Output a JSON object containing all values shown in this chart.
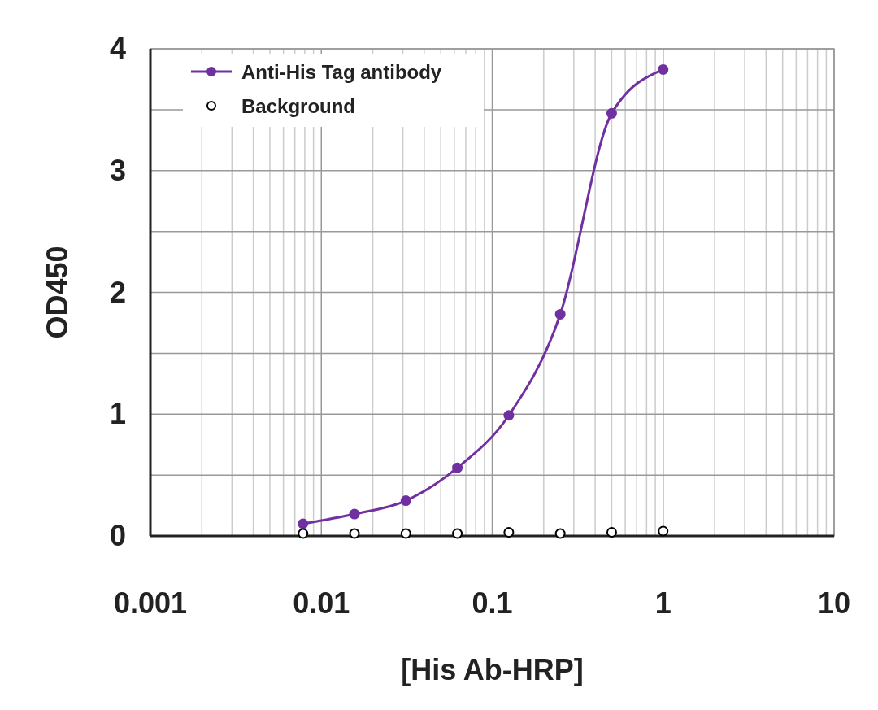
{
  "chart_data": {
    "type": "line",
    "xlabel": "[His Ab-HRP]",
    "ylabel": "OD450",
    "log": "x",
    "xlim": [
      0.001,
      10
    ],
    "ylim": [
      0,
      4
    ],
    "xticks": [
      0.001,
      {
        "value": 0.002,
        "label": null
      },
      {
        "value": 0.003,
        "label": null
      },
      {
        "value": 0.004,
        "label": null
      },
      {
        "value": 0.005,
        "label": null
      },
      {
        "value": 0.006,
        "label": null
      },
      {
        "value": 0.007,
        "label": null
      },
      {
        "value": 0.008,
        "label": null
      },
      {
        "value": 0.009,
        "label": null
      },
      0.01,
      {
        "value": 0.02,
        "label": null
      },
      {
        "value": 0.03,
        "label": null
      },
      {
        "value": 0.04,
        "label": null
      },
      {
        "value": 0.05,
        "label": null
      },
      {
        "value": 0.06,
        "label": null
      },
      {
        "value": 0.07,
        "label": null
      },
      {
        "value": 0.08,
        "label": null
      },
      {
        "value": 0.09,
        "label": null
      },
      0.1,
      {
        "value": 0.2,
        "label": null
      },
      {
        "value": 0.3,
        "label": null
      },
      {
        "value": 0.4,
        "label": null
      },
      {
        "value": 0.5,
        "label": null
      },
      {
        "value": 0.6,
        "label": null
      },
      {
        "value": 0.7,
        "label": null
      },
      {
        "value": 0.8,
        "label": null
      },
      {
        "value": 0.9,
        "label": null
      },
      1,
      {
        "value": 2,
        "label": null
      },
      {
        "value": 3,
        "label": null
      },
      {
        "value": 4,
        "label": null
      },
      {
        "value": 5,
        "label": null
      },
      {
        "value": 6,
        "label": null
      },
      {
        "value": 7,
        "label": null
      },
      {
        "value": 8,
        "label": null
      },
      {
        "value": 9,
        "label": null
      },
      10
    ],
    "yticks": [
      0,
      {
        "value": 0.5,
        "label": null
      },
      1,
      {
        "value": 1.5,
        "label": null
      },
      2,
      {
        "value": 2.5,
        "label": null
      },
      3,
      {
        "value": 3.5,
        "label": null
      },
      4
    ],
    "grid": true,
    "legend": "top left",
    "marker": "circle",
    "line_style": "solid",
    "x": [
      0.0078125,
      0.015625,
      0.03125,
      0.0625,
      0.125,
      0.25,
      0.5,
      1
    ],
    "series": [
      {
        "name": "Anti-His Tag antibody",
        "type": "line",
        "color": "#7030a0",
        "values": [
          0.1,
          0.18,
          0.29,
          0.56,
          0.99,
          1.82,
          3.47,
          3.83
        ]
      },
      {
        "name": "Background",
        "type": "scatter",
        "color": "#000000",
        "values": [
          0.02,
          0.02,
          0.02,
          0.02,
          0.03,
          0.02,
          0.03,
          0.04
        ]
      }
    ]
  }
}
